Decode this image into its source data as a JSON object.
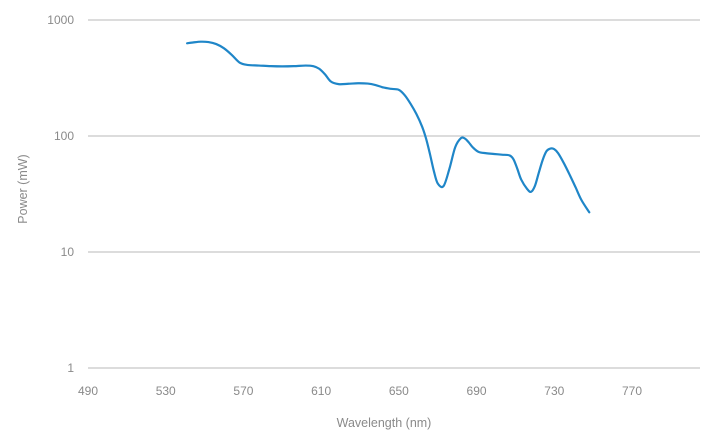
{
  "chart_data": {
    "type": "line",
    "xlabel": "Wavelength (nm)",
    "ylabel": "Power (mW)",
    "xlim": [
      490,
      805
    ],
    "ylim": [
      1,
      1000
    ],
    "yscale": "log",
    "x_ticks": [
      "490",
      "530",
      "570",
      "610",
      "650",
      "690",
      "730",
      "770"
    ],
    "y_ticks": [
      "1",
      "10",
      "100",
      "1000"
    ],
    "grid": "horizontal",
    "legend": "none",
    "series": [
      {
        "color": "#1f86c8",
        "x": [
          541,
          544,
          548,
          552,
          556,
          560,
          564,
          568,
          572,
          578,
          584,
          590,
          596,
          602,
          606,
          609,
          612,
          615,
          619,
          624,
          629,
          634,
          638,
          642,
          646,
          650,
          653,
          656,
          659,
          662,
          664,
          666,
          668,
          670,
          673,
          676,
          679,
          682,
          684,
          686,
          688,
          691,
          695,
          699,
          703,
          707,
          709,
          711,
          713,
          716,
          718,
          720,
          722,
          724,
          726,
          728,
          730,
          732,
          735,
          738,
          741,
          744,
          748
        ],
        "y": [
          630,
          640,
          650,
          645,
          620,
          570,
          500,
          430,
          410,
          405,
          400,
          398,
          400,
          405,
          400,
          380,
          340,
          295,
          280,
          282,
          285,
          283,
          275,
          262,
          255,
          250,
          225,
          190,
          155,
          120,
          95,
          70,
          50,
          39,
          37,
          52,
          80,
          96,
          95,
          88,
          80,
          73,
          71,
          70,
          69,
          68,
          63,
          52,
          42,
          35,
          33,
          37,
          48,
          62,
          74,
          78,
          77,
          71,
          58,
          46,
          36,
          28,
          22
        ]
      }
    ]
  }
}
